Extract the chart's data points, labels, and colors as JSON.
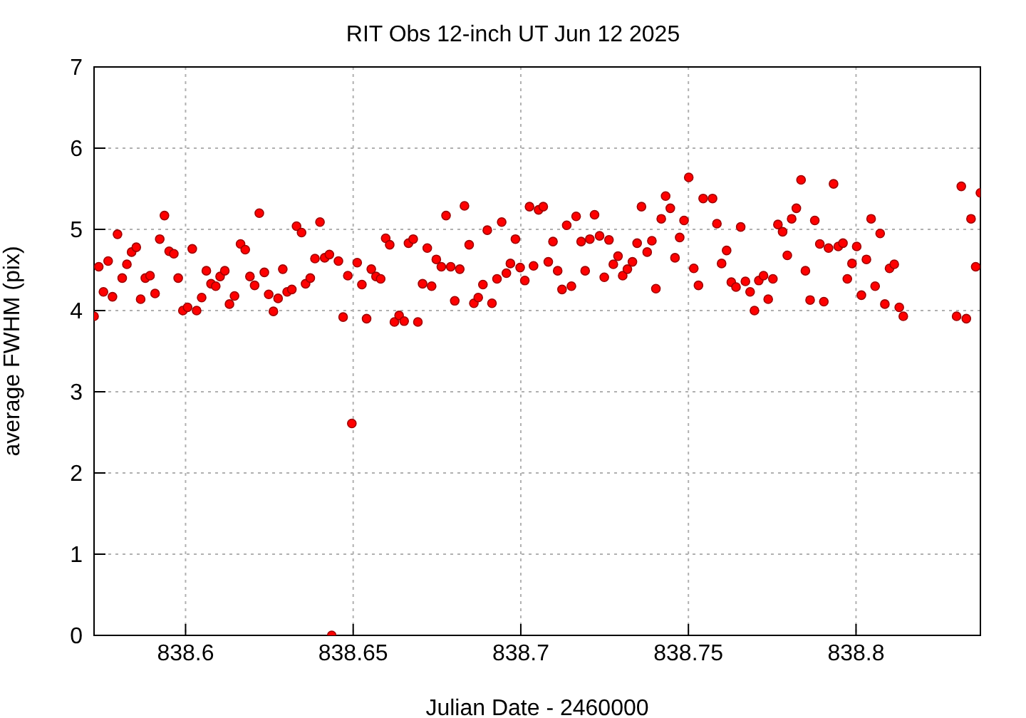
{
  "chart_data": {
    "type": "scatter",
    "title": "RIT Obs 12-inch UT Jun 12 2025",
    "xlabel": "Julian Date - 2460000",
    "ylabel": "average FWHM (pix)",
    "xlim": [
      838.5727,
      838.8371
    ],
    "xticks": [
      838.6,
      838.65,
      838.7,
      838.75,
      838.8
    ],
    "ylim": [
      0,
      7
    ],
    "yticks": [
      0,
      1,
      2,
      3,
      4,
      5,
      6,
      7
    ],
    "grid": true,
    "marker": "circle",
    "series": [
      {
        "color": "#ff0000",
        "x": [
          838.5727,
          838.5741,
          838.5755,
          838.5769,
          838.5782,
          838.5797,
          838.5811,
          838.5825,
          838.5839,
          838.5853,
          838.5866,
          838.588,
          838.5894,
          838.5909,
          838.5923,
          838.5937,
          838.5951,
          838.5965,
          838.5978,
          838.5992,
          838.6006,
          838.602,
          838.6033,
          838.6048,
          838.6062,
          838.6076,
          838.609,
          838.6103,
          838.6117,
          838.6131,
          838.6146,
          838.6164,
          838.6178,
          838.6192,
          838.6206,
          838.622,
          838.6235,
          838.6248,
          838.6262,
          838.6276,
          838.629,
          838.6303,
          838.6317,
          838.6331,
          838.6346,
          838.6358,
          838.6372,
          838.6386,
          838.6401,
          838.6415,
          838.6429,
          838.6436,
          838.6456,
          838.647,
          838.6484,
          838.6496,
          838.6512,
          838.6526,
          838.654,
          838.6554,
          838.6568,
          838.6582,
          838.6597,
          838.6609,
          838.6623,
          838.6637,
          838.6652,
          838.6665,
          838.6679,
          838.6693,
          838.6707,
          838.6721,
          838.6734,
          838.6748,
          838.6763,
          838.6777,
          838.6791,
          838.6803,
          838.6818,
          838.6832,
          838.6846,
          838.686,
          838.6873,
          838.6887,
          838.69,
          838.6914,
          838.6929,
          838.6943,
          838.6957,
          838.6969,
          838.6984,
          838.6998,
          838.7012,
          838.7026,
          838.7038,
          838.7053,
          838.7067,
          838.7082,
          838.7096,
          838.711,
          838.7123,
          838.7137,
          838.7151,
          838.7165,
          838.718,
          838.7192,
          838.7206,
          838.722,
          838.7235,
          838.7249,
          838.7263,
          838.7276,
          838.729,
          838.7304,
          838.7318,
          838.7333,
          838.7347,
          838.736,
          838.7377,
          838.7391,
          838.7403,
          838.7419,
          838.7432,
          838.7446,
          838.746,
          838.7474,
          838.7487,
          838.7501,
          838.7516,
          838.753,
          838.7544,
          838.7572,
          838.7585,
          838.7599,
          838.7614,
          838.7628,
          838.7642,
          838.7656,
          838.767,
          838.7684,
          838.7697,
          838.771,
          838.7724,
          838.7738,
          838.7752,
          838.7767,
          838.7781,
          838.7795,
          838.7808,
          838.7822,
          838.7836,
          838.7849,
          838.7863,
          838.7877,
          838.7892,
          838.7904,
          838.7918,
          838.7933,
          838.7947,
          838.7961,
          838.7974,
          838.7988,
          838.8002,
          838.8016,
          838.8031,
          838.8045,
          838.8057,
          838.8072,
          838.8086,
          838.81,
          838.8114,
          838.8129,
          838.8141,
          838.83,
          838.8314,
          838.8329,
          838.8343,
          838.8357,
          838.8371
        ],
        "values": [
          3.93,
          4.54,
          4.23,
          4.61,
          4.17,
          4.94,
          4.4,
          4.57,
          4.72,
          4.78,
          4.14,
          4.4,
          4.43,
          4.21,
          4.88,
          5.17,
          4.73,
          4.7,
          4.4,
          4.0,
          4.04,
          4.76,
          4.0,
          4.16,
          4.49,
          4.33,
          4.3,
          4.42,
          4.49,
          4.08,
          4.18,
          4.82,
          4.75,
          4.42,
          4.31,
          5.2,
          4.47,
          4.2,
          3.99,
          4.15,
          4.51,
          4.23,
          4.26,
          5.04,
          4.96,
          4.33,
          4.4,
          4.64,
          5.09,
          4.65,
          4.69,
          0,
          4.61,
          3.92,
          4.43,
          2.61,
          4.59,
          4.32,
          3.9,
          4.51,
          4.42,
          4.39,
          4.89,
          4.81,
          3.86,
          3.94,
          3.87,
          4.83,
          4.88,
          3.86,
          4.33,
          4.77,
          4.3,
          4.63,
          4.54,
          5.17,
          4.54,
          4.12,
          4.51,
          5.29,
          4.81,
          4.09,
          4.16,
          4.32,
          4.99,
          4.09,
          4.39,
          5.09,
          4.46,
          4.58,
          4.88,
          4.53,
          4.37,
          5.28,
          4.55,
          5.24,
          5.28,
          4.6,
          4.85,
          4.49,
          4.26,
          5.05,
          4.3,
          5.16,
          4.85,
          4.49,
          4.88,
          5.18,
          4.92,
          4.41,
          4.87,
          4.57,
          4.67,
          4.43,
          4.51,
          4.6,
          4.83,
          5.28,
          4.72,
          4.86,
          4.27,
          5.13,
          5.41,
          5.26,
          4.65,
          4.9,
          5.11,
          5.64,
          4.52,
          4.31,
          5.38,
          5.38,
          5.07,
          4.58,
          4.74,
          4.35,
          4.29,
          5.03,
          4.36,
          4.23,
          4.0,
          4.37,
          4.43,
          4.14,
          4.39,
          5.06,
          4.97,
          4.68,
          5.13,
          5.26,
          5.61,
          4.49,
          4.13,
          5.11,
          4.82,
          4.11,
          4.77,
          5.56,
          4.79,
          4.83,
          4.39,
          4.58,
          4.79,
          4.19,
          4.63,
          5.13,
          4.3,
          4.95,
          4.08,
          4.52,
          4.57,
          4.04,
          3.93,
          3.93,
          5.53,
          3.9,
          5.13,
          4.54,
          5.45
        ]
      }
    ]
  }
}
